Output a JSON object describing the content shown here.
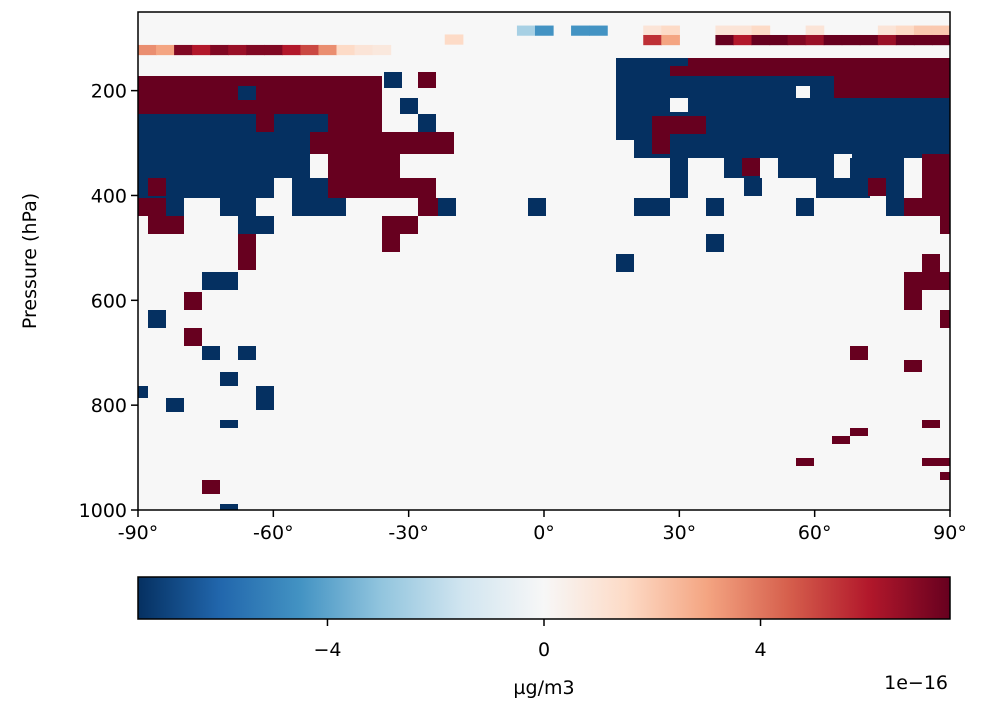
{
  "chart_data": {
    "type": "heatmap",
    "title": "",
    "xlabel": "",
    "ylabel": "Pressure (hPa)",
    "x_range": [
      -90,
      90
    ],
    "y_range": [
      1000,
      50
    ],
    "y_inverted": true,
    "x_ticks": [
      -90,
      -60,
      -30,
      0,
      30,
      60,
      90
    ],
    "x_tick_labels": [
      "-90°",
      "-60°",
      "-30°",
      "0°",
      "30°",
      "60°",
      "90°"
    ],
    "y_ticks": [
      200,
      400,
      600,
      800,
      1000
    ],
    "y_tick_labels": [
      "200",
      "400",
      "600",
      "800",
      "1000"
    ],
    "cell_lat_width": 4,
    "cell_p_height": 18.3,
    "colorbar": {
      "colormap": "RdBu_r",
      "label": "µg/m3",
      "range": [
        -7.5,
        7.5
      ],
      "ticks": [
        -4,
        0,
        4
      ],
      "tick_labels": [
        "−4",
        "0",
        "4"
      ],
      "offset_text": "1e−16",
      "colors": [
        "#053061",
        "#2166ac",
        "#4393c3",
        "#92c5de",
        "#d1e5f0",
        "#f7f7f7",
        "#fddbc7",
        "#f4a582",
        "#d6604d",
        "#b2182b",
        "#67001f"
      ]
    },
    "background_value": 0,
    "cells": [
      {
        "lat": -88,
        "p": 122,
        "v": 3.5
      },
      {
        "lat": -84,
        "p": 122,
        "v": 3
      },
      {
        "lat": -80,
        "p": 122,
        "v": 7
      },
      {
        "lat": -76,
        "p": 122,
        "v": 6
      },
      {
        "lat": -72,
        "p": 122,
        "v": 7
      },
      {
        "lat": -68,
        "p": 122,
        "v": 6.5
      },
      {
        "lat": -64,
        "p": 122,
        "v": 7
      },
      {
        "lat": -60,
        "p": 122,
        "v": 7
      },
      {
        "lat": -56,
        "p": 122,
        "v": 6
      },
      {
        "lat": -52,
        "p": 122,
        "v": 5
      },
      {
        "lat": -48,
        "p": 122,
        "v": 3.5
      },
      {
        "lat": -44,
        "p": 122,
        "v": 1.5
      },
      {
        "lat": -40,
        "p": 122,
        "v": 1
      },
      {
        "lat": -36,
        "p": 122,
        "v": 0.8
      },
      {
        "lat": -20,
        "p": 102,
        "v": 1.5
      },
      {
        "lat": -4,
        "p": 85,
        "v": -2.5
      },
      {
        "lat": 0,
        "p": 85,
        "v": -4.5
      },
      {
        "lat": 8,
        "p": 85,
        "v": -4.5
      },
      {
        "lat": 12,
        "p": 85,
        "v": -4.5
      },
      {
        "lat": 24,
        "p": 85,
        "v": 1
      },
      {
        "lat": 28,
        "p": 85,
        "v": 1.5
      },
      {
        "lat": 40,
        "p": 85,
        "v": 1
      },
      {
        "lat": 44,
        "p": 85,
        "v": 1
      },
      {
        "lat": 48,
        "p": 85,
        "v": 1.5
      },
      {
        "lat": 60,
        "p": 85,
        "v": 1
      },
      {
        "lat": 76,
        "p": 85,
        "v": 1
      },
      {
        "lat": 80,
        "p": 85,
        "v": 1.5
      },
      {
        "lat": 84,
        "p": 85,
        "v": 2
      },
      {
        "lat": 88,
        "p": 85,
        "v": 2
      },
      {
        "lat": 24,
        "p": 103,
        "v": 5.5
      },
      {
        "lat": 28,
        "p": 103,
        "v": 3
      },
      {
        "lat": 40,
        "p": 103,
        "v": 7.5
      },
      {
        "lat": 44,
        "p": 103,
        "v": 6
      },
      {
        "lat": 48,
        "p": 103,
        "v": 7.5
      },
      {
        "lat": 52,
        "p": 103,
        "v": 7.5
      },
      {
        "lat": 56,
        "p": 103,
        "v": 7
      },
      {
        "lat": 60,
        "p": 103,
        "v": 6.5
      },
      {
        "lat": 64,
        "p": 103,
        "v": 7.5
      },
      {
        "lat": 68,
        "p": 103,
        "v": 7.5
      },
      {
        "lat": 72,
        "p": 103,
        "v": 7.5
      },
      {
        "lat": 76,
        "p": 103,
        "v": 6.5
      },
      {
        "lat": 80,
        "p": 103,
        "v": 7.5
      },
      {
        "lat": 84,
        "p": 103,
        "v": 7.5
      },
      {
        "lat": 88,
        "p": 103,
        "v": 7.5
      }
    ]
  }
}
